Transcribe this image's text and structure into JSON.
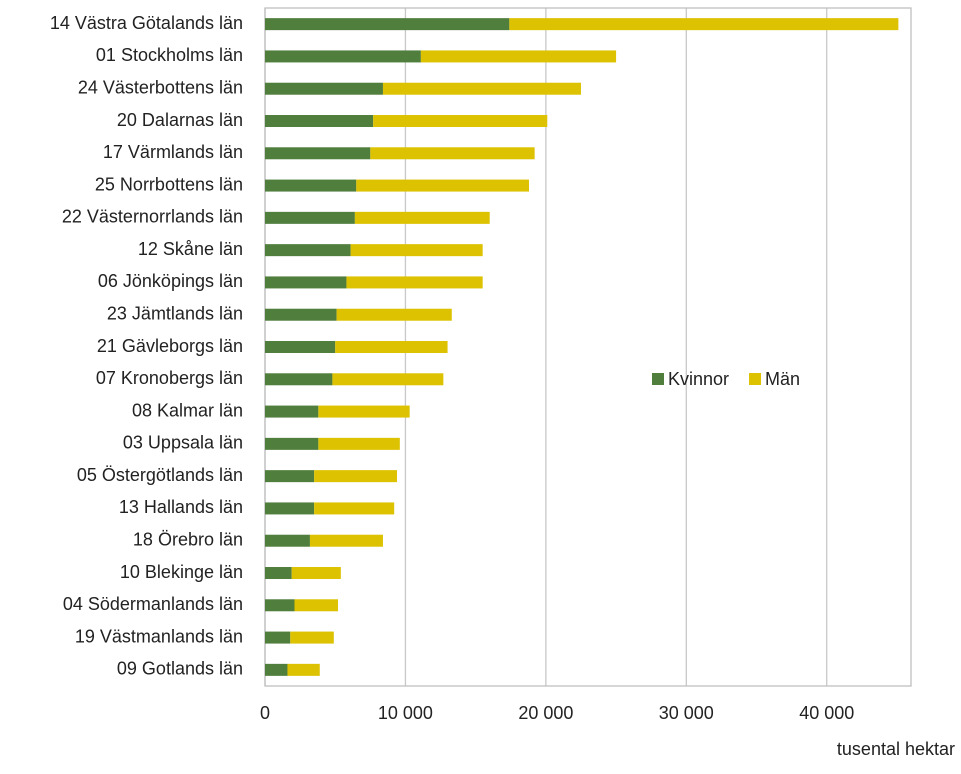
{
  "chart_data": {
    "type": "stacked-bar-horizontal",
    "categories": [
      "14 Västra Götalands län",
      "01 Stockholms län",
      "24 Västerbottens län",
      "20 Dalarnas län",
      "17 Värmlands län",
      "25 Norrbottens län",
      "22 Västernorrlands län",
      "12 Skåne län",
      "06 Jönköpings län",
      "23 Jämtlands län",
      "21 Gävleborgs län",
      "07 Kronobergs län",
      "08 Kalmar län",
      "03 Uppsala län",
      "05 Östergötlands län",
      "13 Hallands län",
      "18 Örebro län",
      "10 Blekinge län",
      "04 Södermanlands län",
      "19 Västmanlands län",
      "09 Gotlands län"
    ],
    "series": [
      {
        "name": "Kvinnor",
        "color": "#507e3c",
        "values": [
          17400,
          11100,
          8400,
          7700,
          7500,
          6500,
          6400,
          6100,
          5800,
          5100,
          5000,
          4800,
          3800,
          3800,
          3500,
          3500,
          3200,
          1900,
          2100,
          1800,
          1600
        ]
      },
      {
        "name": "Män",
        "color": "#dcc200",
        "values": [
          27700,
          13900,
          14100,
          12400,
          11700,
          12300,
          9600,
          9400,
          9700,
          8200,
          8000,
          7900,
          6500,
          5800,
          5900,
          5700,
          5200,
          3500,
          3100,
          3100,
          2300
        ]
      }
    ],
    "x_label": "tusental hektar",
    "xlim": [
      0,
      46000
    ],
    "xticks": [
      0,
      {
        "value": 10000,
        "label": "10 000"
      },
      {
        "value": 20000,
        "label": "20 000"
      },
      {
        "value": 30000,
        "label": "30 000"
      },
      {
        "value": 40000,
        "label": "40 000"
      }
    ],
    "grid": true,
    "legend": "right"
  }
}
